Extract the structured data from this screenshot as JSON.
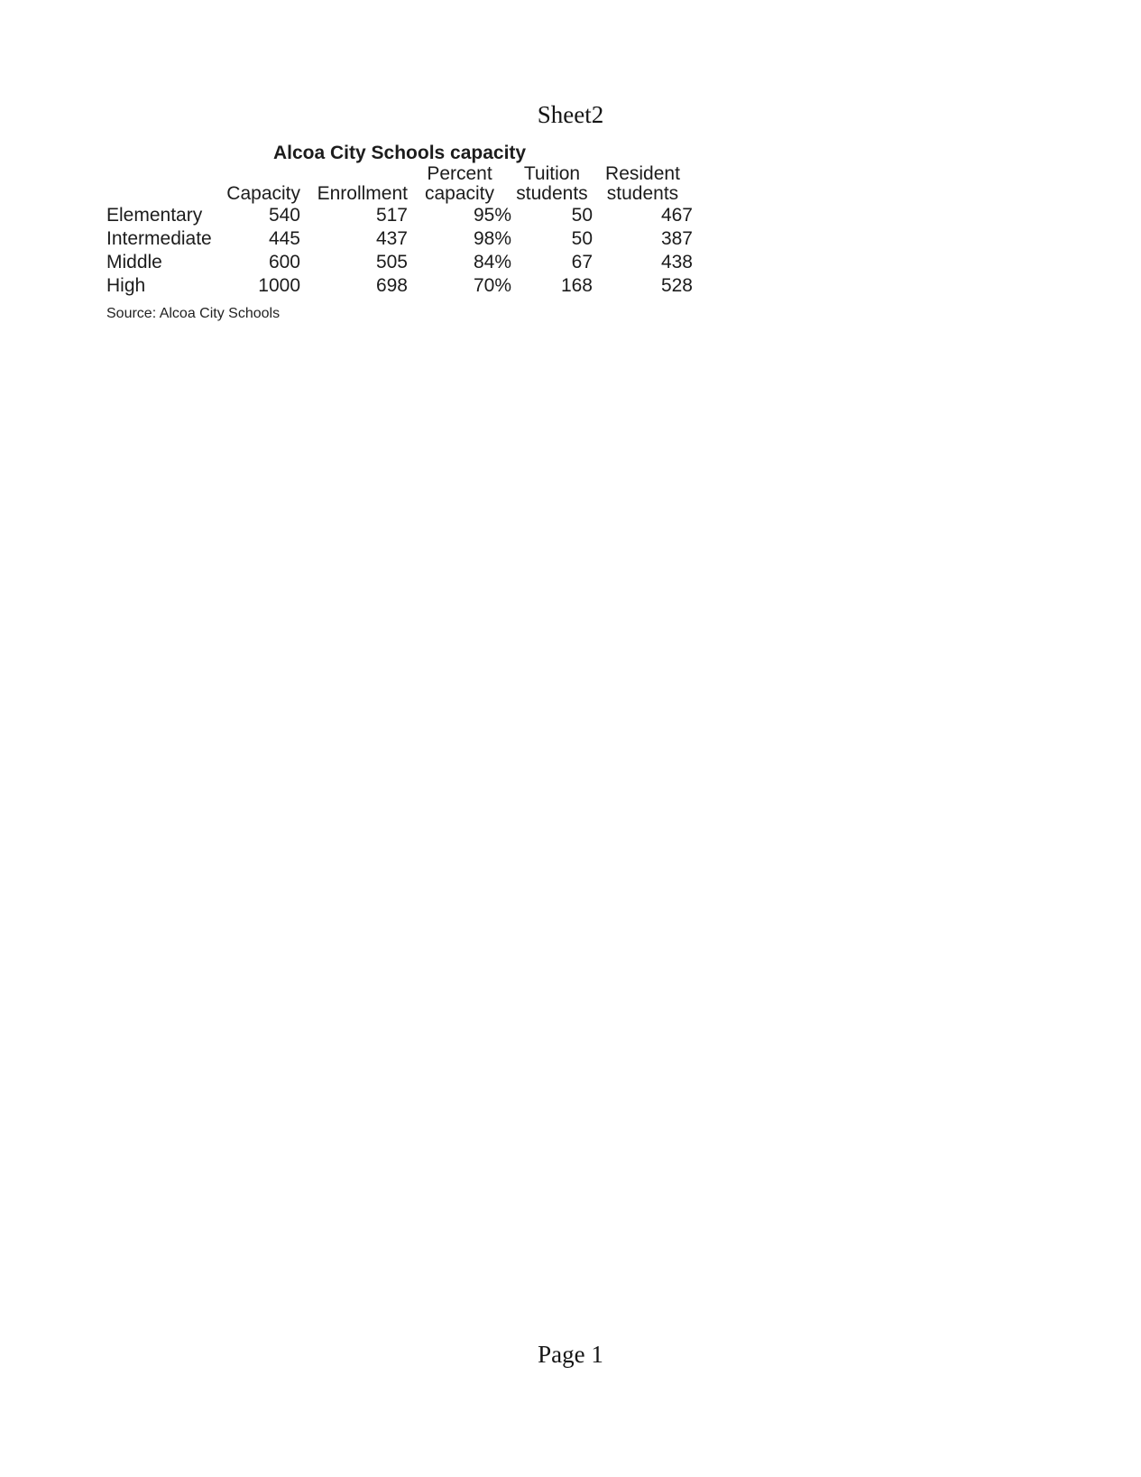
{
  "page": {
    "header": "Sheet2",
    "footer": "Page 1"
  },
  "colors": {
    "background": "#ffffff",
    "text": "#1a1a1a"
  },
  "table": {
    "title": "Alcoa City Schools capacity",
    "source": "Source: Alcoa City Schools",
    "columns": [
      {
        "line1": "",
        "line2": "Capacity"
      },
      {
        "line1": "",
        "line2": "Enrollment"
      },
      {
        "line1": "Percent",
        "line2": "capacity"
      },
      {
        "line1": "Tuition",
        "line2": "students"
      },
      {
        "line1": "Resident",
        "line2": "students"
      }
    ],
    "rows": [
      {
        "label": "Elementary",
        "cells": [
          "540",
          "517",
          "95%",
          "50",
          "467"
        ]
      },
      {
        "label": "Intermediate",
        "cells": [
          "445",
          "437",
          "98%",
          "50",
          "387"
        ]
      },
      {
        "label": "Middle",
        "cells": [
          "600",
          "505",
          "84%",
          "67",
          "438"
        ]
      },
      {
        "label": "High",
        "cells": [
          "1000",
          "698",
          "70%",
          "168",
          "528"
        ]
      }
    ]
  }
}
